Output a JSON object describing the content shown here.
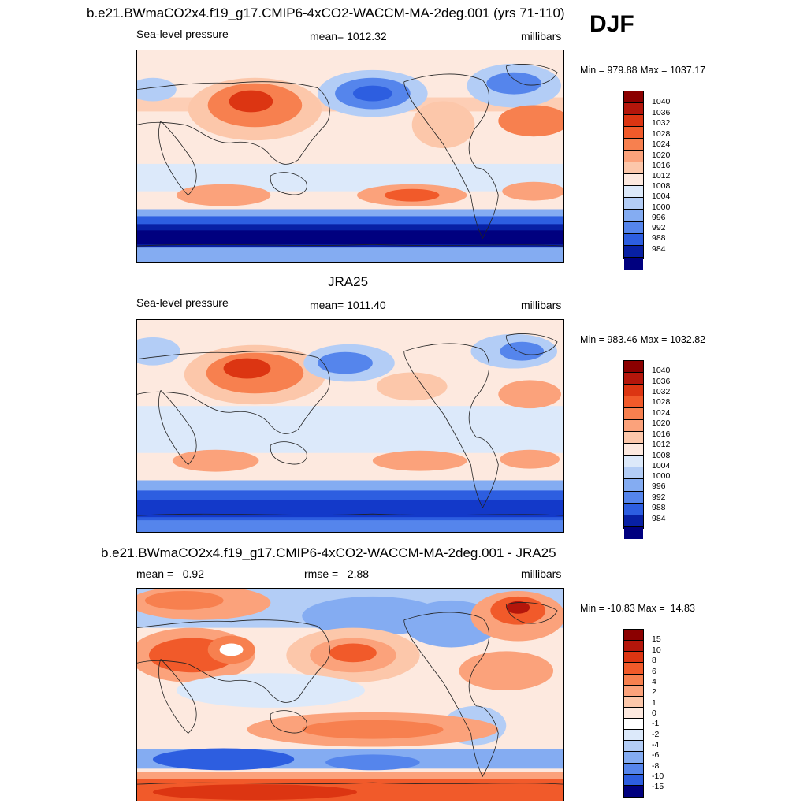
{
  "season": "DJF",
  "colors": {
    "pos": [
      "#fde9df",
      "#fcc7aa",
      "#fba27b",
      "#f7804f",
      "#f15a2a",
      "#dc3512",
      "#b4160b",
      "#8b0000"
    ],
    "neg": [
      "#dce9fa",
      "#b3cdf6",
      "#84acf2",
      "#5585ec",
      "#2d5ee0",
      "#1339c9",
      "#0820a4",
      "#00007f"
    ],
    "zero": "#ffffff",
    "land": "#222222"
  },
  "panels": [
    {
      "id": "model",
      "title": "b.e21.BWmaCO2x4.f19_g17.CMIP6-4xCO2-WACCM-MA-2deg.001 (yrs 71-110)",
      "left_label": "Sea-level pressure",
      "center_label": "mean= 1012.32",
      "right_label": "millibars",
      "minmax": "Min = 979.88 Max = 1037.17",
      "colorbar_ticks": [
        "1040",
        "1036",
        "1032",
        "1028",
        "1024",
        "1020",
        "1016",
        "1012",
        "1008",
        "1004",
        "1000",
        "996",
        "992",
        "988",
        "984"
      ]
    },
    {
      "id": "obs",
      "title": "JRA25",
      "left_label": "Sea-level pressure",
      "center_label": "mean= 1011.40",
      "right_label": "millibars",
      "minmax": "Min = 983.46 Max = 1032.82",
      "colorbar_ticks": [
        "1040",
        "1036",
        "1032",
        "1028",
        "1024",
        "1020",
        "1016",
        "1012",
        "1008",
        "1004",
        "1000",
        "996",
        "992",
        "988",
        "984"
      ]
    },
    {
      "id": "diff",
      "title": "b.e21.BWmaCO2x4.f19_g17.CMIP6-4xCO2-WACCM-MA-2deg.001 - JRA25",
      "left_label": "mean =   0.92",
      "center_label": "rmse =   2.88",
      "right_label": "millibars",
      "minmax": "Min = -10.83 Max =  14.83",
      "colorbar_ticks": [
        "15",
        "10",
        "8",
        "6",
        "4",
        "2",
        "1",
        "0",
        "-1",
        "-2",
        "-4",
        "-6",
        "-8",
        "-10",
        "-15"
      ]
    }
  ]
}
